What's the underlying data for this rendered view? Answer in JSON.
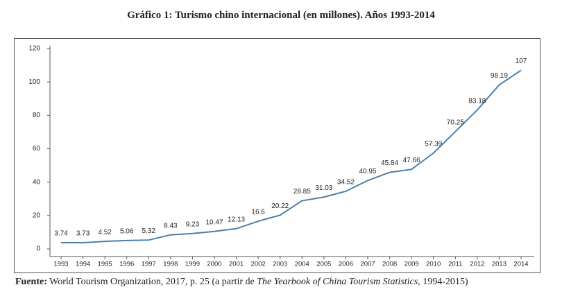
{
  "chart_data": {
    "type": "line",
    "title": "Gráfico 1: Turismo chino internacional (en millones). Años 1993-2014",
    "categories": [
      "1993",
      "1994",
      "1995",
      "1996",
      "1997",
      "1998",
      "1999",
      "2000",
      "2001",
      "2002",
      "2003",
      "2004",
      "2005",
      "2006",
      "2007",
      "2008",
      "2009",
      "2010",
      "2011",
      "2012",
      "2013",
      "2014"
    ],
    "values": [
      3.74,
      3.73,
      4.52,
      5.06,
      5.32,
      8.43,
      9.23,
      10.47,
      12.13,
      16.6,
      20.22,
      28.85,
      31.03,
      34.52,
      40.95,
      45.84,
      47.66,
      57.39,
      70.25,
      83.18,
      98.19,
      107
    ],
    "color": "#4a7fa8",
    "ylim": [
      0,
      120
    ],
    "yticks": [
      0,
      20,
      40,
      60,
      80,
      100,
      120
    ]
  },
  "source": {
    "label": "Fuente:",
    "text": "World Tourism Organization, 2017, p. 25 (a partir de",
    "italic": "The Yearbook of China Tourism Statistics,",
    "end": " 1994-2015)"
  }
}
